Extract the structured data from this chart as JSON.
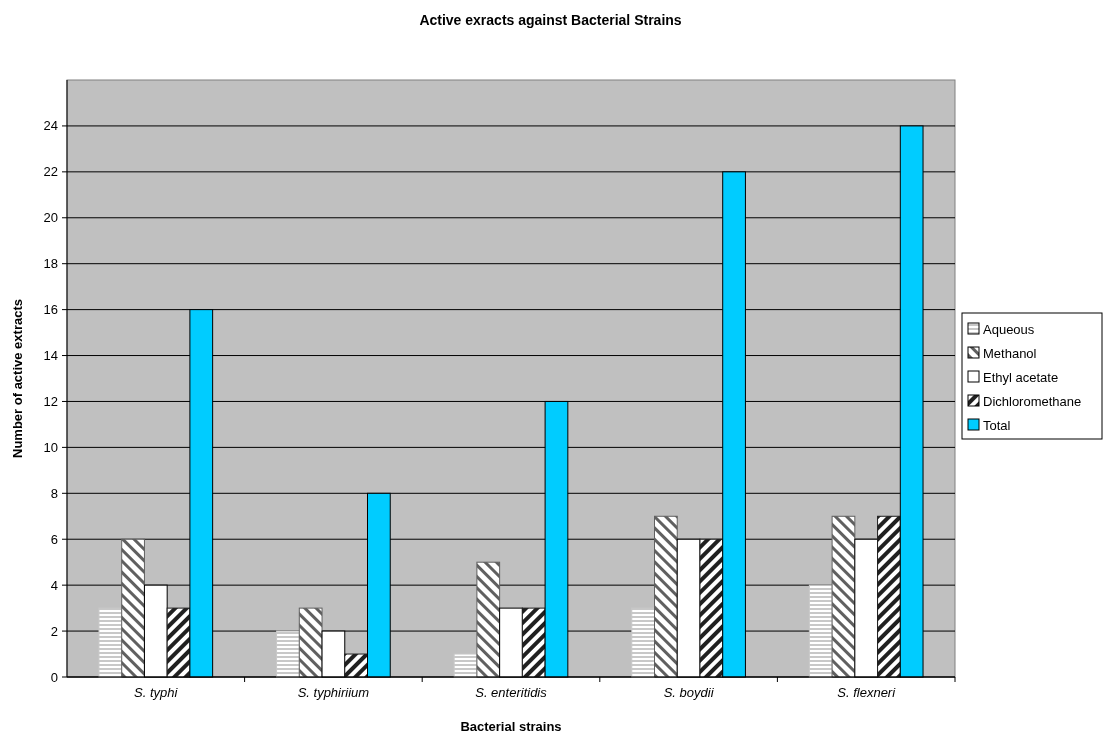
{
  "chart_data": {
    "type": "bar",
    "title": "Active exracts against Bacterial Strains",
    "xlabel": "Bacterial strains",
    "ylabel": "Number of active extracts",
    "categories": [
      "S. typhi",
      "S. typhiriium",
      "S. enteritidis",
      "S. boydii",
      "S. flexneri"
    ],
    "series": [
      {
        "name": "Aqueous",
        "color": "#c8c8c8",
        "values": [
          3,
          2,
          1,
          3,
          4
        ]
      },
      {
        "name": "Methanol",
        "color": "#606060",
        "values": [
          6,
          3,
          5,
          7,
          7
        ]
      },
      {
        "name": "Ethyl acetate",
        "color": "#ffffff",
        "values": [
          4,
          2,
          3,
          6,
          6
        ]
      },
      {
        "name": "Dichloromethane",
        "color": "#202020",
        "values": [
          3,
          1,
          3,
          6,
          7
        ]
      },
      {
        "name": "Total",
        "color": "#00ccff",
        "values": [
          16,
          8,
          12,
          22,
          24
        ]
      }
    ],
    "ylim": [
      0,
      26
    ],
    "yticks": [
      0,
      2,
      4,
      6,
      8,
      10,
      12,
      14,
      16,
      18,
      20,
      22,
      24
    ],
    "grid": "y",
    "legend": "right"
  }
}
